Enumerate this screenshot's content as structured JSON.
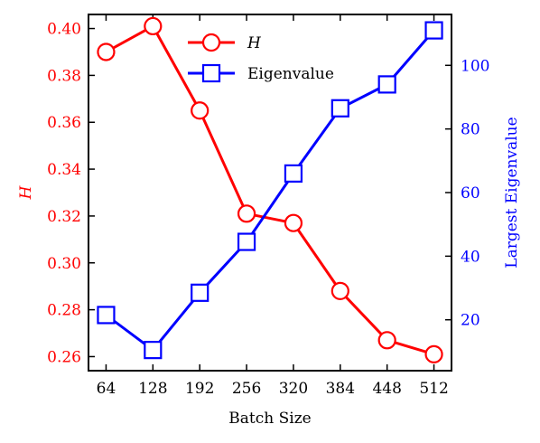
{
  "chart_data": {
    "type": "line",
    "x": [
      64,
      128,
      192,
      256,
      320,
      384,
      448,
      512
    ],
    "xlabel": "Batch Size",
    "ylabel_left": "H",
    "ylabel_right": "Largest Eigenvalue",
    "y_left_ticks": [
      "0.26",
      "0.28",
      "0.30",
      "0.32",
      "0.34",
      "0.36",
      "0.38",
      "0.40"
    ],
    "y_right_ticks": [
      "20",
      "40",
      "60",
      "80",
      "100"
    ],
    "x_ticks": [
      "64",
      "128",
      "192",
      "256",
      "320",
      "384",
      "448",
      "512"
    ],
    "ylim_left": [
      0.254,
      0.406
    ],
    "ylim_right": [
      4,
      116
    ],
    "legend_position": "top-center",
    "grid": false,
    "series": [
      {
        "name": "H",
        "axis": "left",
        "marker": "circle",
        "color": "#ff0000",
        "values": [
          0.39,
          0.401,
          0.365,
          0.321,
          0.317,
          0.288,
          0.267,
          0.261
        ]
      },
      {
        "name": "Eigenvalue",
        "axis": "right",
        "marker": "square",
        "color": "#0000ff",
        "values": [
          21.5,
          10.5,
          28.5,
          44.5,
          66.0,
          86.5,
          94.0,
          111.0
        ]
      }
    ],
    "colors": {
      "left_axis": "#ff0000",
      "right_axis": "#0000ff",
      "frame": "#000000"
    }
  }
}
